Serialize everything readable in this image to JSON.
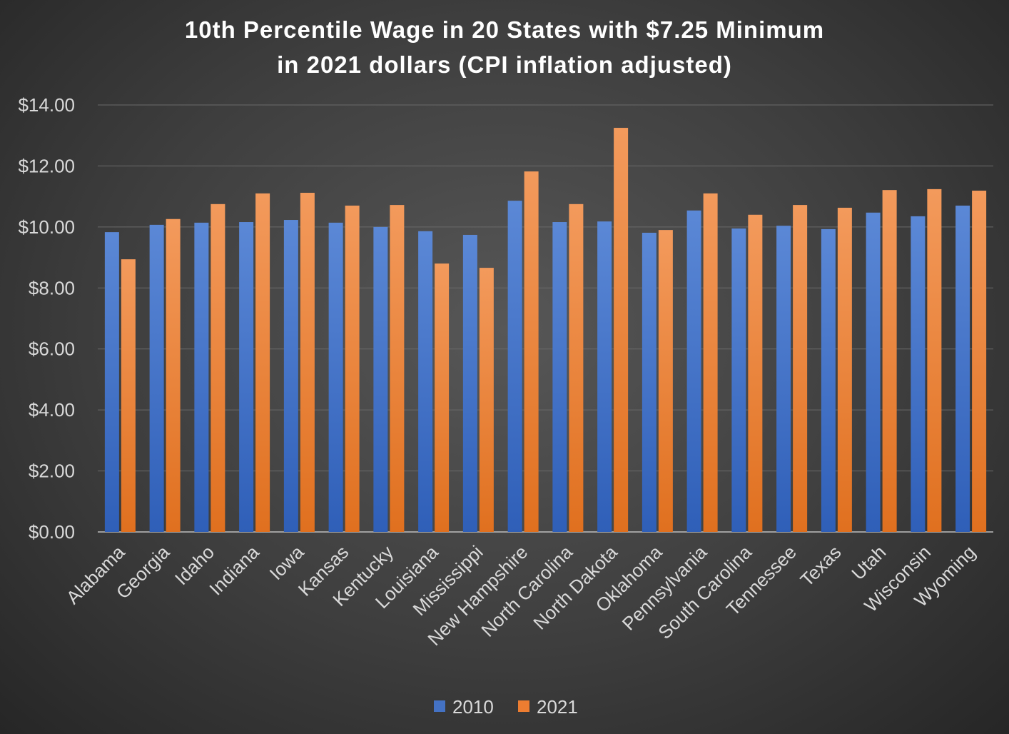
{
  "chart_data": {
    "type": "bar",
    "title": "10th Percentile Wage in 20 States with $7.25 Minimum",
    "subtitle": "in 2021 dollars (CPI inflation adjusted)",
    "xlabel": "",
    "ylabel": "",
    "ylim": [
      0,
      14
    ],
    "yticks": [
      "$0.00",
      "$2.00",
      "$4.00",
      "$6.00",
      "$8.00",
      "$10.00",
      "$12.00",
      "$14.00"
    ],
    "grid": true,
    "legend_position": "bottom",
    "categories": [
      "Alabama",
      "Georgia",
      "Idaho",
      "Indiana",
      "Iowa",
      "Kansas",
      "Kentucky",
      "Louisiana",
      "Mississippi",
      "New Hampshire",
      "North Carolina",
      "North Dakota",
      "Oklahoma",
      "Pennsylvania",
      "South Carolina",
      "Tennessee",
      "Texas",
      "Utah",
      "Wisconsin",
      "Wyoming"
    ],
    "series": [
      {
        "name": "2010",
        "color": "#4472C4",
        "values": [
          9.83,
          10.07,
          10.14,
          10.16,
          10.23,
          10.14,
          10.0,
          9.86,
          9.74,
          10.86,
          10.16,
          10.18,
          9.81,
          10.54,
          9.95,
          10.04,
          9.93,
          10.47,
          10.35,
          10.7
        ]
      },
      {
        "name": "2021",
        "color": "#ED7D31",
        "values": [
          8.94,
          10.26,
          10.75,
          11.1,
          11.12,
          10.7,
          10.72,
          8.8,
          8.66,
          11.82,
          10.75,
          13.25,
          9.9,
          11.1,
          10.4,
          10.72,
          10.63,
          11.21,
          11.24,
          11.19
        ]
      }
    ]
  }
}
